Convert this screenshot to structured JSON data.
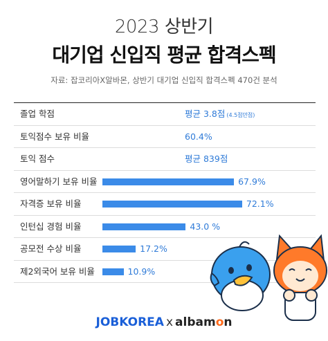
{
  "header": {
    "title_line1": "2023 상반기",
    "title_line2": "대기업 신입직 평균 합격스펙",
    "source": "자료: 잡코리아X알바몬, 상반기 대기업 신입직 합격스펙 470건 분석"
  },
  "chart_data": {
    "type": "bar",
    "categories": [
      "졸업 학점",
      "토익점수 보유 비율",
      "토익 점수",
      "영어말하기 보유 비율",
      "자격증 보유 비율",
      "인턴십 경험 비율",
      "공모전 수상 비율",
      "제2외국어 보유 비율"
    ],
    "text_rows": [
      {
        "index": 0,
        "value_text": "평균 3.8점",
        "note": "(4.5점만점)"
      },
      {
        "index": 1,
        "value_text": "60.4%",
        "note": ""
      },
      {
        "index": 2,
        "value_text": "평균 839점",
        "note": ""
      }
    ],
    "bar_rows": [
      {
        "index": 3,
        "value": 67.9,
        "label": "67.9%"
      },
      {
        "index": 4,
        "value": 72.1,
        "label": "72.1%"
      },
      {
        "index": 5,
        "value": 43.0,
        "label": "43.0 %"
      },
      {
        "index": 6,
        "value": 17.2,
        "label": "17.2%"
      },
      {
        "index": 7,
        "value": 10.9,
        "label": "10.9%"
      }
    ],
    "bar_color": "#3b8be8",
    "value_color": "#2f7bd8"
  },
  "footer": {
    "brand1": "JOBKOREA",
    "sep": "x",
    "brand2_a": "albam",
    "brand2_o": "o",
    "brand2_b": "n"
  },
  "icons": [
    "blue-bird-character-icon",
    "orange-cat-character-icon"
  ]
}
